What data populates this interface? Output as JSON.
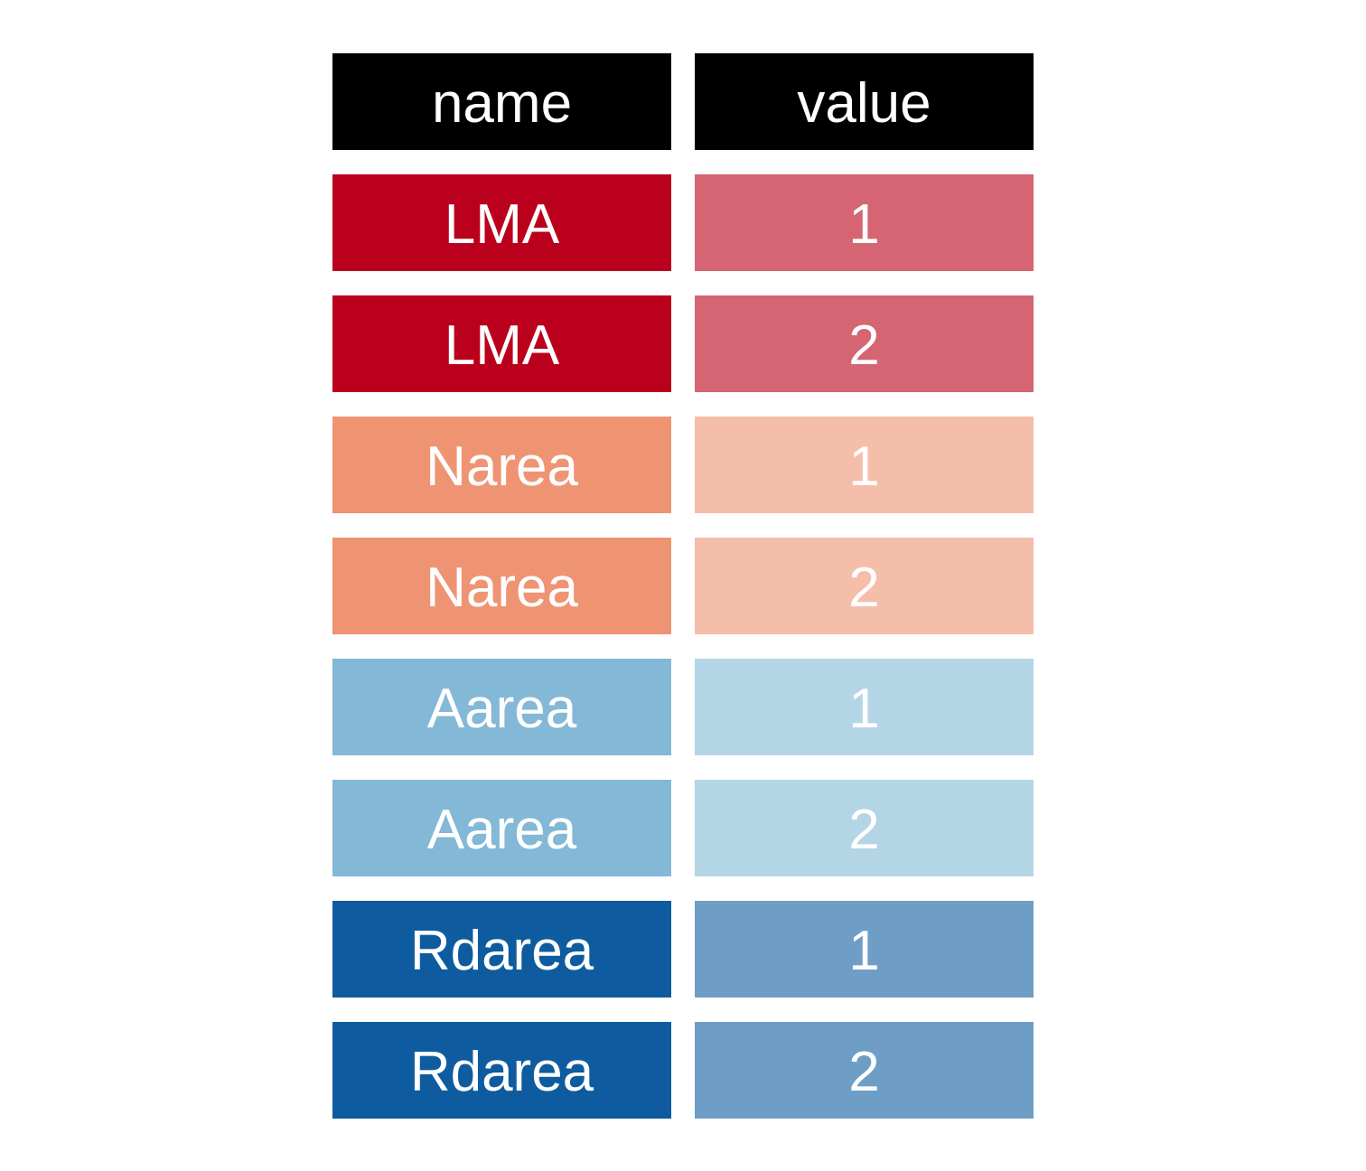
{
  "table": {
    "headers": [
      {
        "label": "name",
        "color": "#000000"
      },
      {
        "label": "value",
        "color": "#000000"
      }
    ],
    "rows": [
      {
        "name": "LMA",
        "value": "1",
        "name_color": "#BA001C",
        "value_color": "#D56573"
      },
      {
        "name": "LMA",
        "value": "2",
        "name_color": "#BA001C",
        "value_color": "#D56573"
      },
      {
        "name": "Narea",
        "value": "1",
        "name_color": "#EF9473",
        "value_color": "#F5BEAB"
      },
      {
        "name": "Narea",
        "value": "2",
        "name_color": "#EF9473",
        "value_color": "#F5BEAB"
      },
      {
        "name": "Aarea",
        "value": "1",
        "name_color": "#83B8D6",
        "value_color": "#B4D5E6"
      },
      {
        "name": "Aarea",
        "value": "2",
        "name_color": "#83B8D6",
        "value_color": "#B4D5E6"
      },
      {
        "name": "Rdarea",
        "value": "1",
        "name_color": "#0E5C9F",
        "value_color": "#6E9EC6"
      },
      {
        "name": "Rdarea",
        "value": "2",
        "name_color": "#0E5C9F",
        "value_color": "#6E9EC6"
      }
    ]
  }
}
